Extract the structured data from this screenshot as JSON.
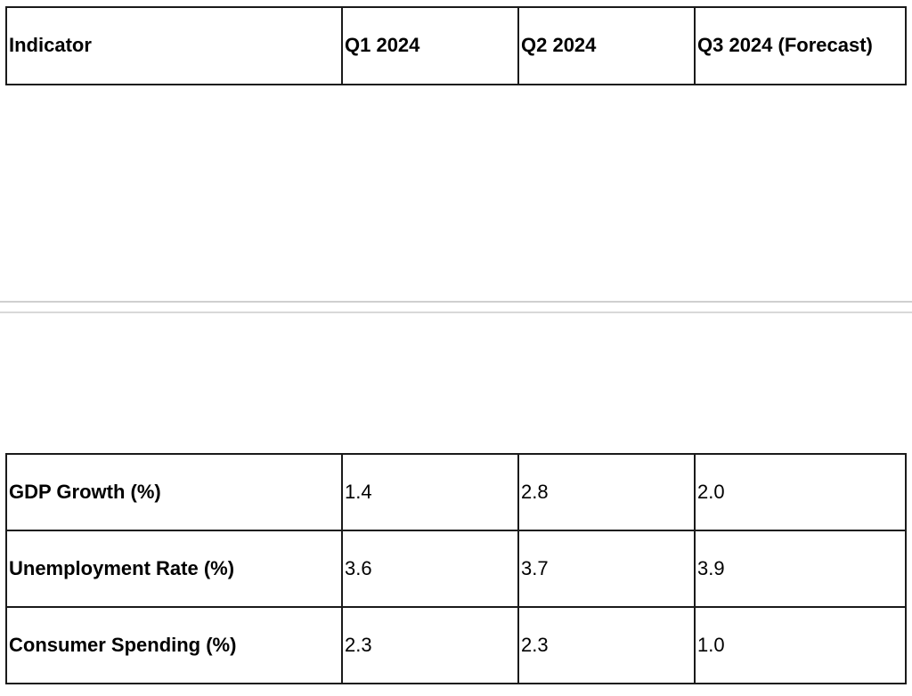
{
  "table": {
    "headers": [
      "Indicator",
      "Q1 2024",
      "Q2 2024",
      "Q3 2024 (Forecast)"
    ],
    "rows": [
      [
        "GDP Growth (%)",
        "1.4",
        "2.8",
        "2.0"
      ],
      [
        "Unemployment Rate (%)",
        "3.6",
        "3.7",
        "3.9"
      ],
      [
        "Consumer Spending (%)",
        "2.3",
        "2.3",
        "1.0"
      ]
    ]
  },
  "colors": {
    "border": "#1a1a1a",
    "divider": "#cfcfcf",
    "background": "#ffffff"
  }
}
